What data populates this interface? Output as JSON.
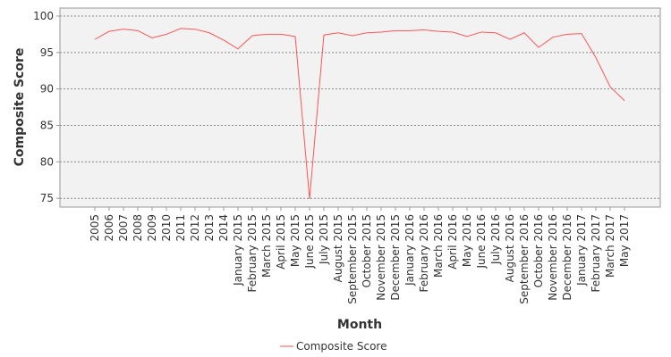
{
  "chart_data": {
    "type": "line",
    "x_label": "Month",
    "y_label": "Composite Score",
    "categories": [
      "2005",
      "2006",
      "2007",
      "2008",
      "2009",
      "2010",
      "2011",
      "2012",
      "2013",
      "2014",
      "January 2015",
      "February 2015",
      "March 2015",
      "April 2015",
      "May 2015",
      "June 2015",
      "July 2015",
      "August 2015",
      "September 2015",
      "October 2015",
      "November 2015",
      "December 2015",
      "January 2016",
      "February 2016",
      "March 2016",
      "April 2016",
      "May 2016",
      "June 2016",
      "July 2016",
      "August 2016",
      "September 2016",
      "October 2016",
      "November 2016",
      "December 2016",
      "January 2017",
      "February 2017",
      "March 2017",
      "May 2017"
    ],
    "series": [
      {
        "name": "Composite Score",
        "color": "#ff5555",
        "values": [
          96.8,
          97.9,
          98.2,
          98.0,
          97.0,
          97.5,
          98.3,
          98.2,
          97.7,
          96.7,
          95.5,
          97.3,
          97.5,
          97.5,
          97.2,
          74.9,
          97.4,
          97.7,
          97.3,
          97.7,
          97.8,
          98.0,
          98.0,
          98.1,
          97.9,
          97.8,
          97.2,
          97.8,
          97.7,
          96.8,
          97.7,
          95.7,
          97.1,
          97.5,
          97.6,
          94.3,
          90.3,
          88.4
        ]
      }
    ],
    "ylim": [
      73.8,
      101.1
    ],
    "yticks": [
      75,
      80,
      85,
      90,
      95,
      100
    ],
    "grid": true,
    "legend": "bottom"
  }
}
